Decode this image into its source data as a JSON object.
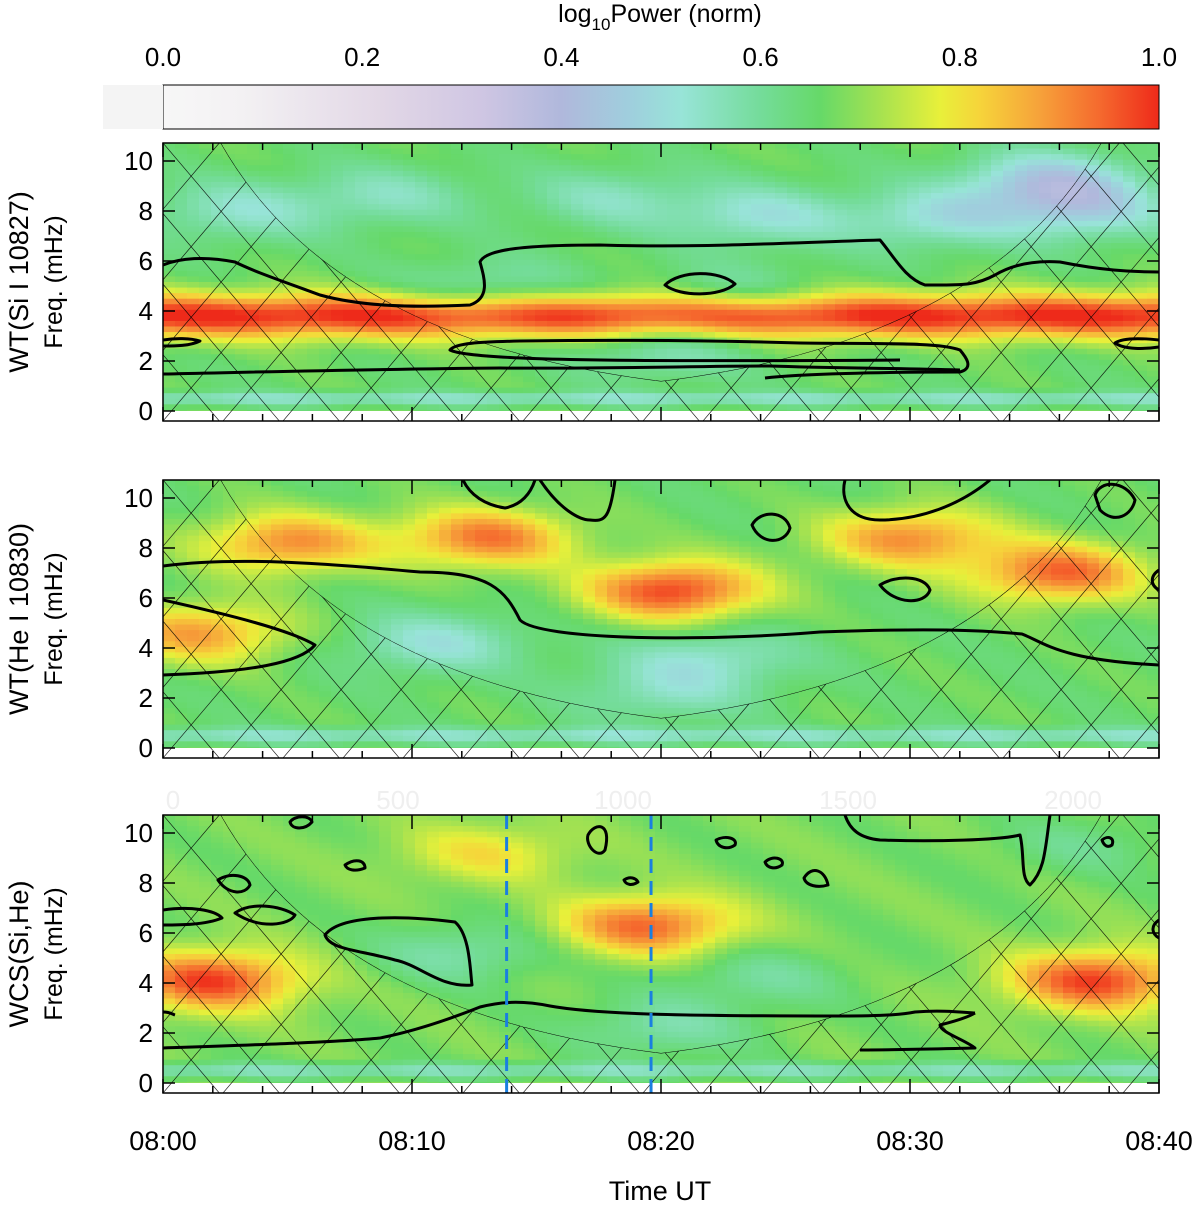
{
  "chart_data": {
    "type": "heatmap",
    "colorbar": {
      "label_prefix": "log",
      "label_sub": "10",
      "label_suffix": "Power (norm)",
      "range": [
        0.0,
        1.0
      ],
      "ticks": [
        "0.0",
        "0.2",
        "0.4",
        "0.6",
        "0.8",
        "1.0"
      ],
      "colormap": [
        {
          "stop": 0.0,
          "color": "#f7f7f7"
        },
        {
          "stop": 0.08,
          "color": "#f3f1f3"
        },
        {
          "stop": 0.22,
          "color": "#e2d7e6"
        },
        {
          "stop": 0.32,
          "color": "#cfc6e3"
        },
        {
          "stop": 0.4,
          "color": "#b0b8dc"
        },
        {
          "stop": 0.47,
          "color": "#9fcfdd"
        },
        {
          "stop": 0.52,
          "color": "#98e4d8"
        },
        {
          "stop": 0.6,
          "color": "#74dc9a"
        },
        {
          "stop": 0.66,
          "color": "#66d968"
        },
        {
          "stop": 0.72,
          "color": "#a6e250"
        },
        {
          "stop": 0.78,
          "color": "#e8f03a"
        },
        {
          "stop": 0.82,
          "color": "#f6d43a"
        },
        {
          "stop": 0.88,
          "color": "#f6a23a"
        },
        {
          "stop": 0.94,
          "color": "#f56a2e"
        },
        {
          "stop": 1.0,
          "color": "#ee2a1a"
        }
      ]
    },
    "x_axis": {
      "label": "Time UT",
      "range_minutes": [
        0,
        40
      ],
      "tick_minutes": [
        0,
        10,
        20,
        30,
        40
      ],
      "tick_labels": [
        "08:00",
        "08:10",
        "08:20",
        "08:30",
        "08:40"
      ],
      "minor_step_minutes": 2
    },
    "y_axis": {
      "label": "Freq. (mHz)",
      "range_mHz": [
        0,
        10.5
      ],
      "tick_values": [
        0,
        2,
        4,
        6,
        8,
        10
      ],
      "tick_labels": [
        "0",
        "2",
        "4",
        "6",
        "8",
        "10"
      ]
    },
    "panels": [
      {
        "id": "si",
        "ylabel_title": "WT(Si I 10827)",
        "ylabel": "Freq. (mHz)",
        "base_level": 0.66,
        "bands": [
          {
            "freq_mHz": 3.8,
            "width_mHz": 0.9,
            "amp": 0.34
          },
          {
            "freq_mHz": 0.5,
            "width_mHz": 0.25,
            "amp": -0.12
          }
        ],
        "blobs": [
          {
            "t_min": 3,
            "f_mHz": 8.0,
            "amp": -0.12
          },
          {
            "t_min": 9,
            "f_mHz": 8.6,
            "amp": -0.1
          },
          {
            "t_min": 18,
            "f_mHz": 8.5,
            "amp": -0.1
          },
          {
            "t_min": 24,
            "f_mHz": 7.8,
            "amp": -0.14
          },
          {
            "t_min": 31,
            "f_mHz": 7.7,
            "amp": -0.14
          },
          {
            "t_min": 35.5,
            "f_mHz": 9.2,
            "amp": -0.2
          },
          {
            "t_min": 37,
            "f_mHz": 8.0,
            "amp": -0.16
          },
          {
            "t_min": 13,
            "f_mHz": 4.8,
            "amp": -0.1
          },
          {
            "t_min": 23,
            "f_mHz": 4.6,
            "amp": -0.08
          },
          {
            "t_min": 20,
            "f_mHz": 2.4,
            "amp": -0.1
          }
        ],
        "cone_bottom_mHz": 1.2
      },
      {
        "id": "he",
        "ylabel_title": "WT(He I 10830)",
        "ylabel": "Freq. (mHz)",
        "base_level": 0.66,
        "bands": [
          {
            "freq_mHz": 0.5,
            "width_mHz": 0.3,
            "amp": -0.12
          }
        ],
        "blobs": [
          {
            "t_min": 20.5,
            "f_mHz": 6.3,
            "amp": 0.32
          },
          {
            "t_min": 5,
            "f_mHz": 8.2,
            "amp": 0.24
          },
          {
            "t_min": 13,
            "f_mHz": 8.4,
            "amp": 0.26
          },
          {
            "t_min": 30,
            "f_mHz": 8.4,
            "amp": 0.24
          },
          {
            "t_min": 36,
            "f_mHz": 7.0,
            "amp": 0.28
          },
          {
            "t_min": 1.5,
            "f_mHz": 4.6,
            "amp": 0.22
          },
          {
            "t_min": 11,
            "f_mHz": 4.2,
            "amp": -0.14
          },
          {
            "t_min": 22,
            "f_mHz": 3.6,
            "amp": -0.12
          },
          {
            "t_min": 20,
            "f_mHz": 2.2,
            "amp": -0.1
          }
        ],
        "cone_bottom_mHz": 1.2
      },
      {
        "id": "wcs",
        "ylabel_title": "WCS(Si,He)",
        "ylabel": "Freq. (mHz)",
        "base_level": 0.68,
        "bands": [
          {
            "freq_mHz": 0.5,
            "width_mHz": 0.3,
            "amp": -0.12
          }
        ],
        "blobs": [
          {
            "t_min": 2,
            "f_mHz": 4.1,
            "amp": 0.3
          },
          {
            "t_min": 37.5,
            "f_mHz": 4.1,
            "amp": 0.3
          },
          {
            "t_min": 19.5,
            "f_mHz": 6.3,
            "amp": 0.26
          },
          {
            "t_min": 13,
            "f_mHz": 9.2,
            "amp": 0.12
          },
          {
            "t_min": 12,
            "f_mHz": 5.2,
            "amp": -0.1
          },
          {
            "t_min": 24,
            "f_mHz": 4.2,
            "amp": -0.08
          },
          {
            "t_min": 20,
            "f_mHz": 2.2,
            "amp": -0.1
          },
          {
            "t_min": 37,
            "f_mHz": 9.5,
            "amp": -0.06
          }
        ],
        "cone_bottom_mHz": 1.2,
        "vlines_minutes": [
          13.8,
          19.6
        ],
        "vline_color": "#1a7fe0",
        "faint_top_ticks": [
          "0",
          "500",
          "1000",
          "1500",
          "2000"
        ]
      }
    ],
    "contour_color": "#000000"
  }
}
